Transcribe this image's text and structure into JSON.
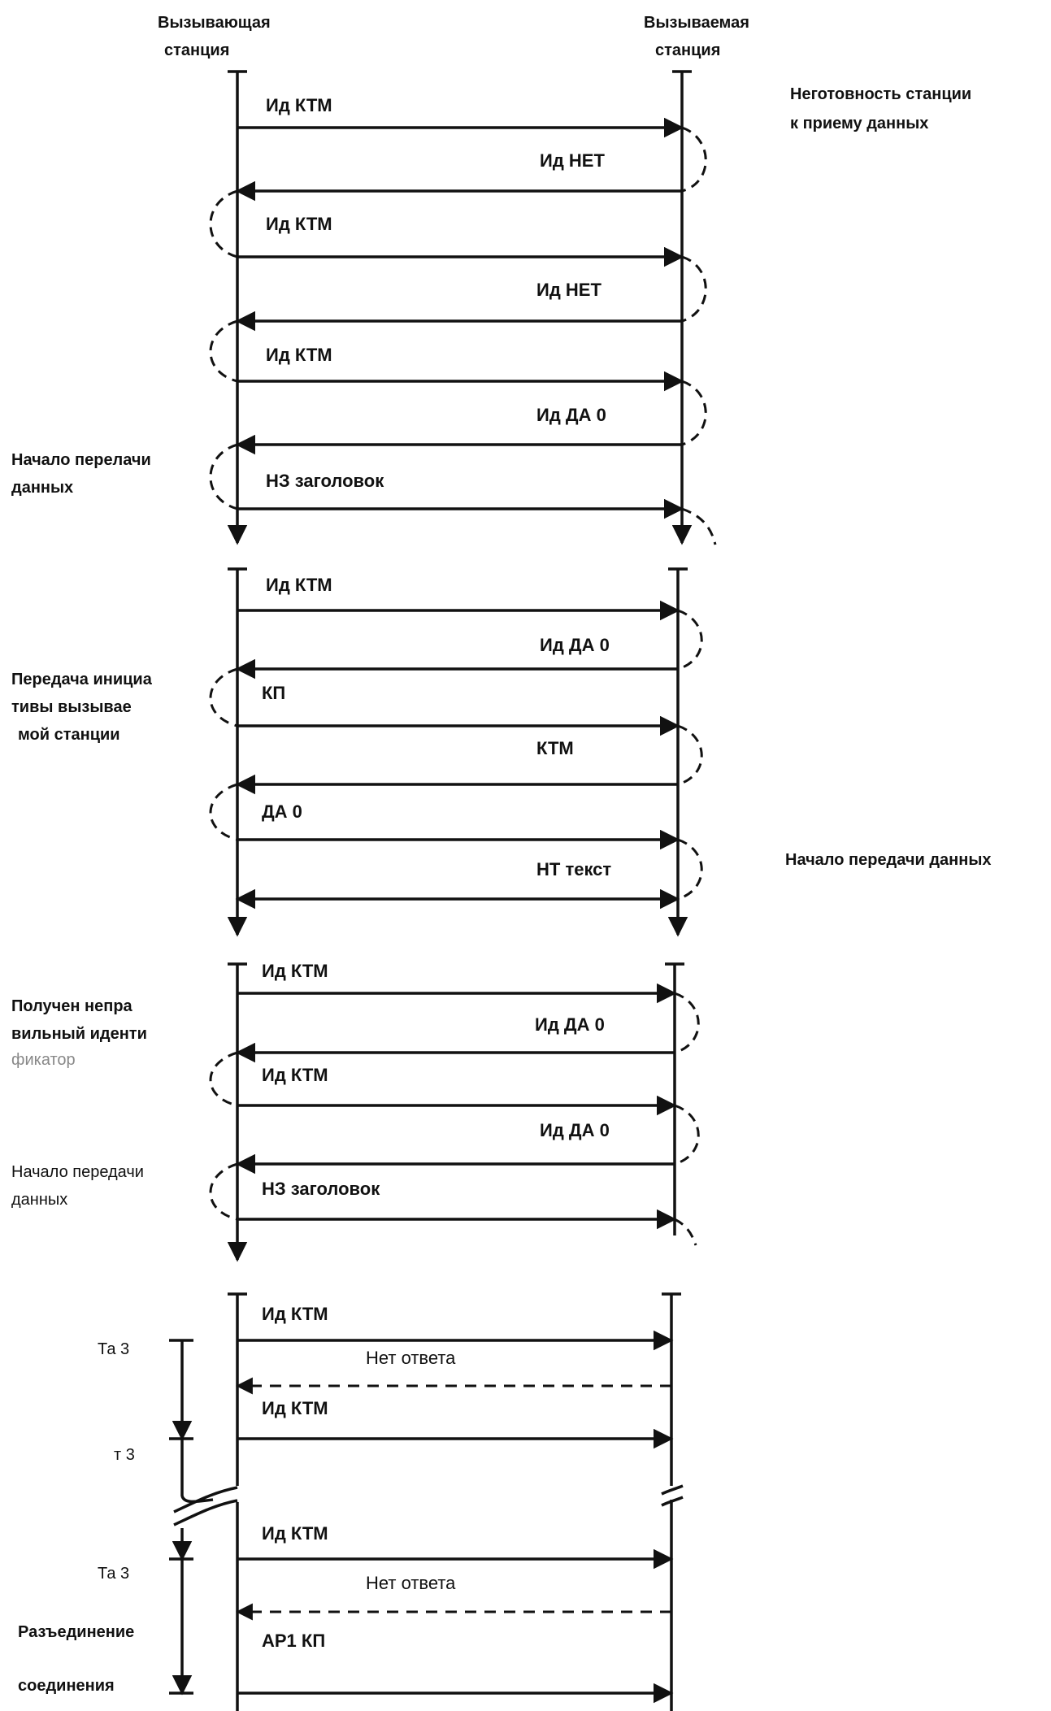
{
  "header": {
    "caller_line1": "Вызывающая",
    "caller_line2": "станция",
    "callee_line1": "Вызываемая",
    "callee_line2": "станция"
  },
  "notes": {
    "not_ready_1": "Неготовность станции",
    "not_ready_2": "к приему данных",
    "start_1": "Начало перелачи",
    "start_2": "данных",
    "initiative_1": "Передача инициа",
    "initiative_2": "тивы вызывае",
    "initiative_3": "мой станции",
    "start_right": "Начало передачи данных",
    "wrong_id_1": "Получен непра",
    "wrong_id_2": "вильный иденти",
    "wrong_id_3": "фикатор",
    "start3_1": "Начало передачи",
    "start3_2": "данных",
    "disconnect_1": "Разъединение",
    "disconnect_2": "соединения"
  },
  "timers": {
    "ta3_a": "Та 3",
    "t3": "т 3",
    "ta3_b": "Та 3"
  },
  "section1": {
    "m1": "Ид КТМ",
    "m2": "Ид НЕТ",
    "m3": "Ид КТМ",
    "m4": "Ид НЕТ",
    "m5": "Ид КТМ",
    "m6": "Ид ДА 0",
    "m7": "НЗ заголовок"
  },
  "section2": {
    "m1": "Ид КТМ",
    "m2": "Ид ДА 0",
    "m3": "КП",
    "m4": "КТМ",
    "m5": "ДА 0",
    "m6": "НТ текст"
  },
  "section3": {
    "m1": "Ид КТМ",
    "m2": "Ид ДА 0",
    "m3": "Ид КТМ",
    "m4": "Ид ДА 0",
    "m5": "НЗ заголовок"
  },
  "section4": {
    "m1": "Ид КТМ",
    "m2": "Нет ответа",
    "m3": "Ид КТМ",
    "m4": "Ид КТМ",
    "m5": "Нет ответа",
    "m6": "АР1 КП"
  }
}
